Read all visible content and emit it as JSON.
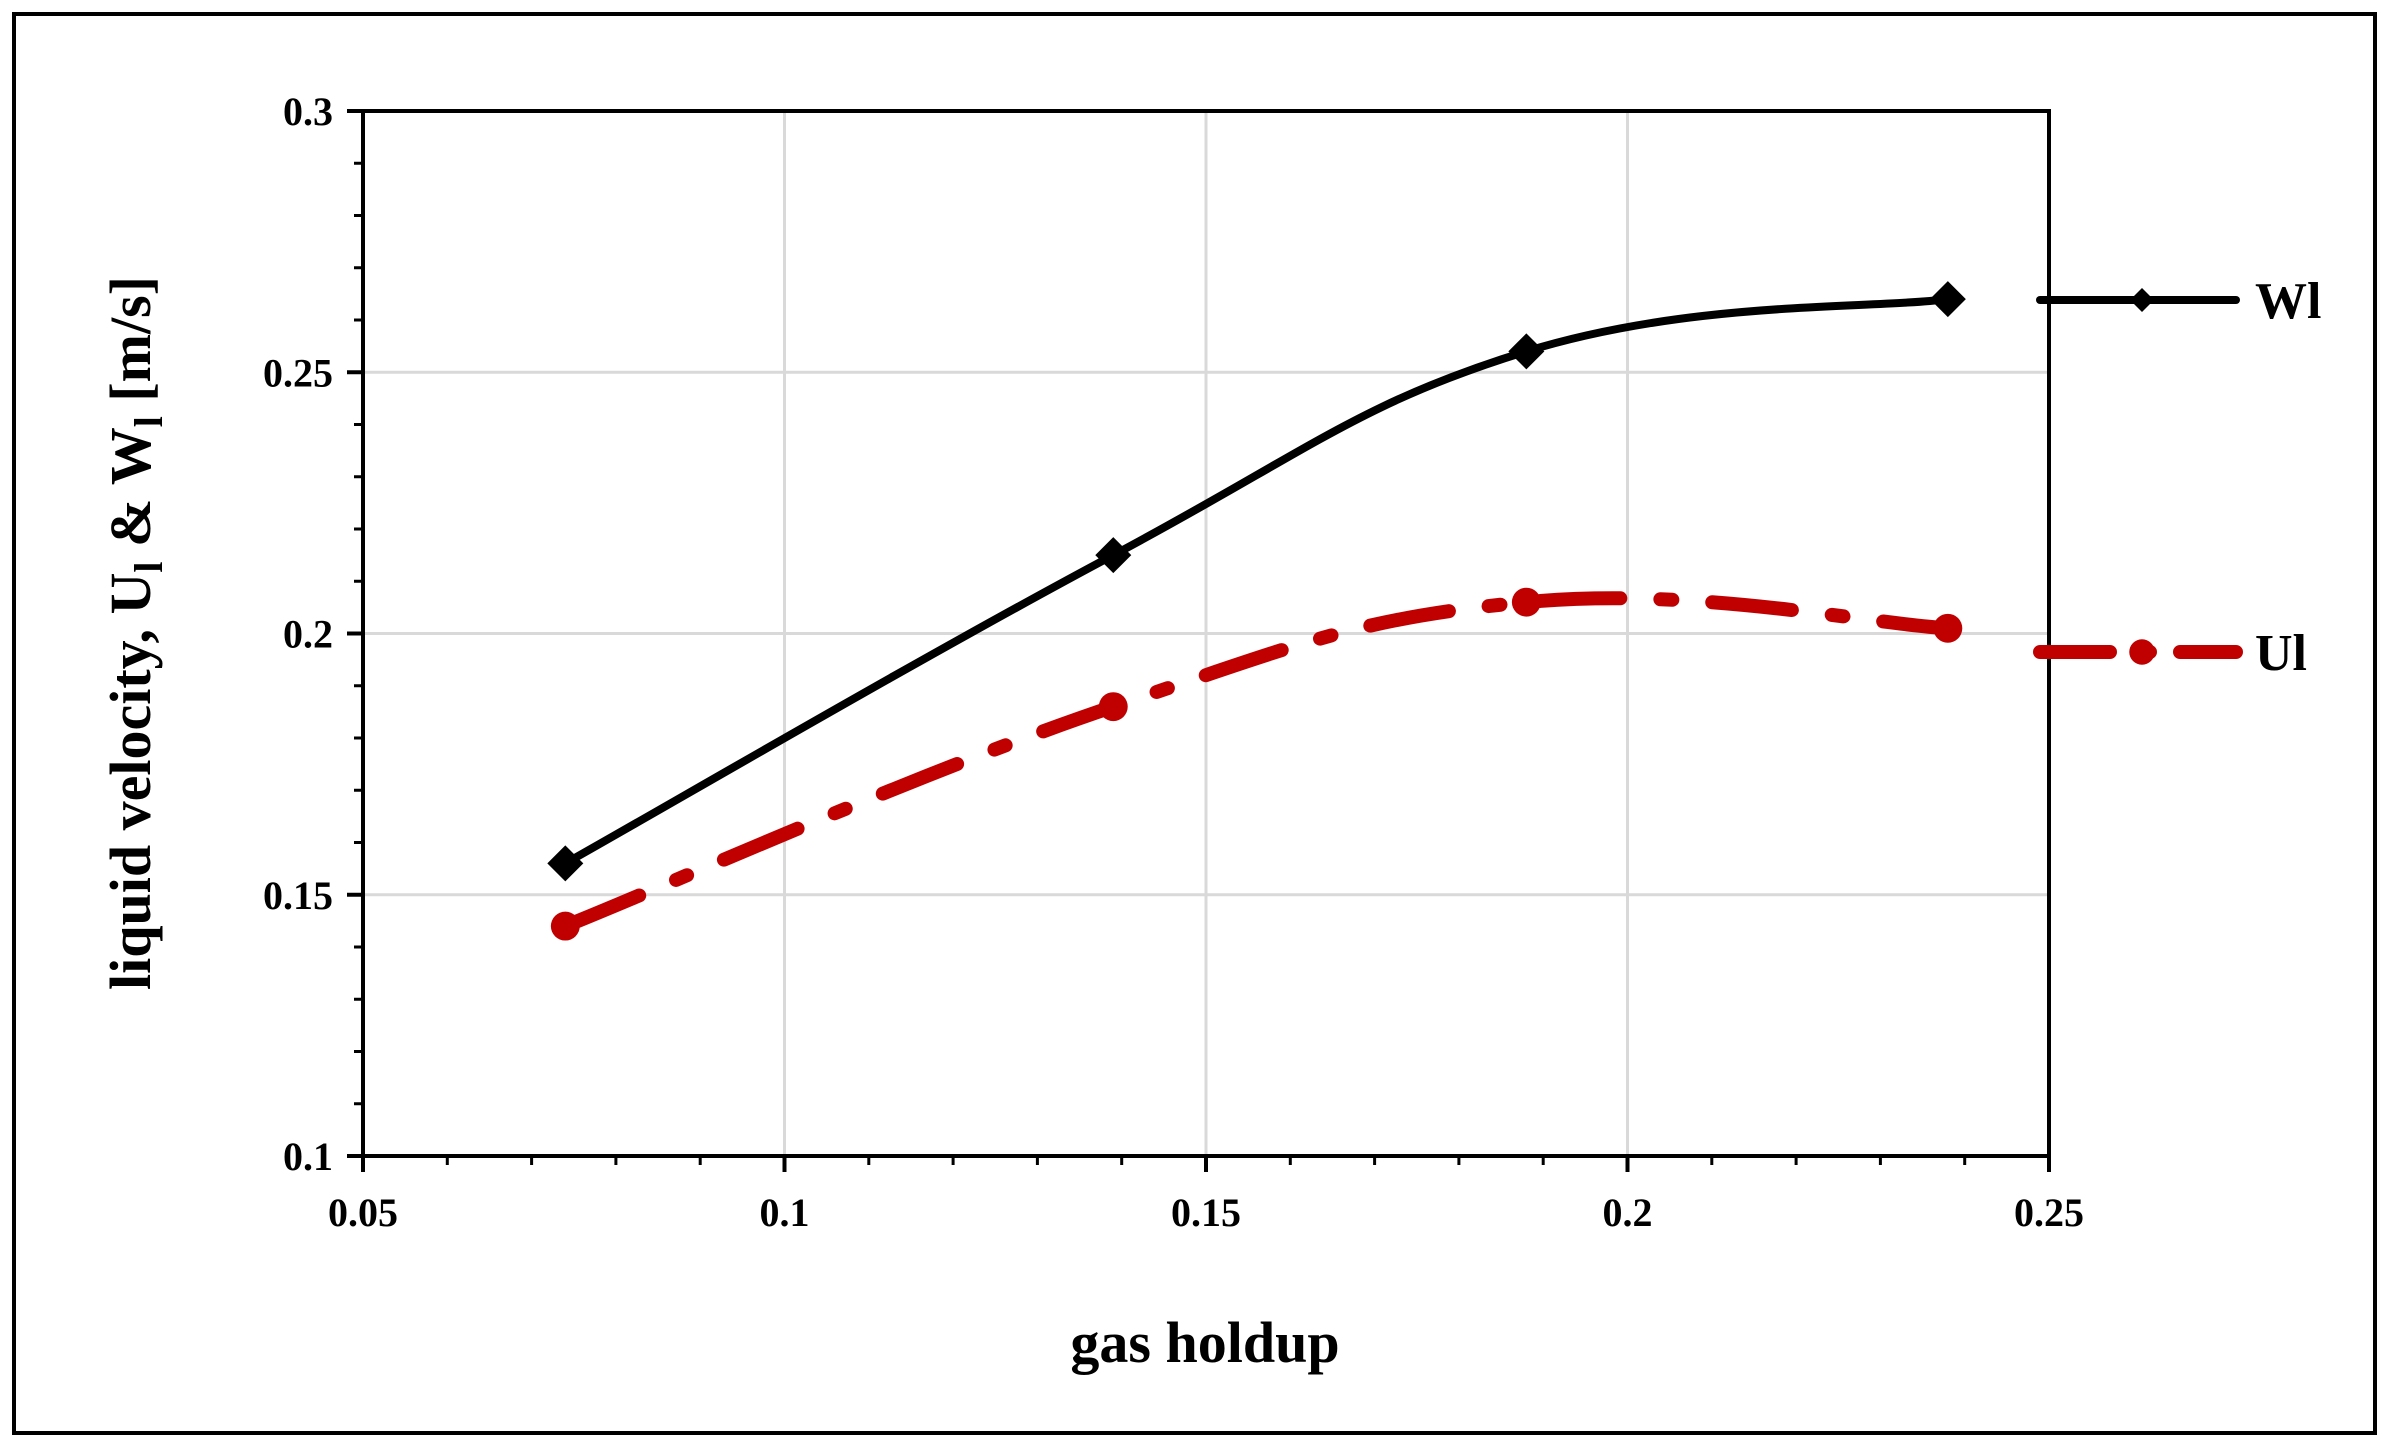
{
  "chart_data": {
    "type": "line",
    "title": "",
    "xlabel": "gas holdup",
    "ylabel": {
      "prefix": "liquid velocity, U",
      "sub1": "l",
      "mid": " & W",
      "sub2": "l",
      "suffix": " [m/s]"
    },
    "xlim": [
      0.05,
      0.25
    ],
    "ylim": [
      0.1,
      0.3
    ],
    "x_ticks": [
      0.05,
      0.1,
      0.15,
      0.2,
      0.25
    ],
    "x_tick_labels": [
      "0.05",
      "0.1",
      "0.15",
      "0.2",
      "0.25"
    ],
    "y_ticks": [
      0.1,
      0.15,
      0.2,
      0.25,
      0.3
    ],
    "y_tick_labels": [
      "0.1",
      "0.15",
      "0.2",
      "0.25",
      "0.3"
    ],
    "grid": true,
    "legend_position": "right",
    "series": [
      {
        "name": "Wl",
        "marker": "diamond",
        "line_style": "solid",
        "color": "#000000",
        "x": [
          0.074,
          0.139,
          0.188,
          0.238
        ],
        "y": [
          0.156,
          0.215,
          0.254,
          0.264
        ]
      },
      {
        "name": "Ul",
        "marker": "circle",
        "line_style": "dash-dot",
        "color": "#c00000",
        "x": [
          0.074,
          0.139,
          0.188,
          0.238
        ],
        "y": [
          0.144,
          0.186,
          0.206,
          0.201
        ]
      }
    ]
  }
}
